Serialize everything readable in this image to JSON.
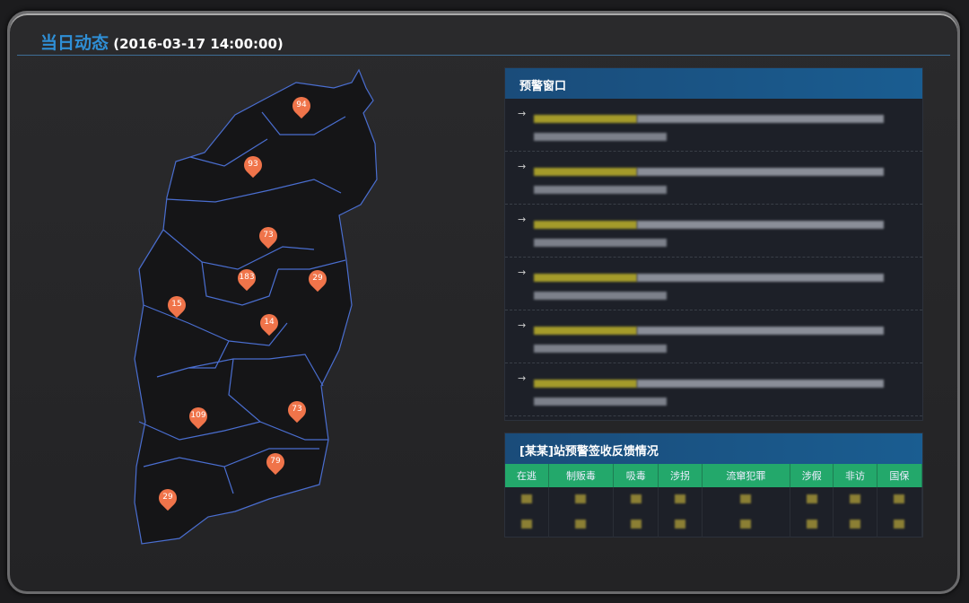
{
  "header": {
    "title": "当日动态",
    "datetime": "(2016-03-17 14:00:00)"
  },
  "map": {
    "pins": [
      94,
      93,
      73,
      183,
      29,
      15,
      14,
      109,
      73,
      79,
      29
    ],
    "pin_color": "#f0744a",
    "border_color": "#4a6ed0"
  },
  "alert_window": {
    "title": "预警窗口",
    "items": 6
  },
  "feedback": {
    "title": "[某某]站预警签收反馈情况",
    "columns": [
      "在逃",
      "制贩毒",
      "吸毒",
      "涉拐",
      "流窜犯罪",
      "涉假",
      "非访",
      "国保"
    ],
    "rows": 2
  }
}
